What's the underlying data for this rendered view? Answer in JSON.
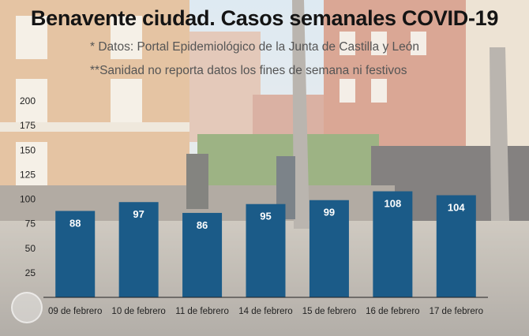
{
  "title": "Benavente ciudad. Casos semanales COVID-19",
  "notes": [
    "* Datos: Portal Epidemiológico de la Junta de Castilla y León",
    "**Sanidad no reporta datos los fines de semana ni festivos"
  ],
  "colors": {
    "bar": "#1b5b88",
    "label": "#ffffff",
    "axis": "#222222"
  },
  "chart_data": {
    "type": "bar",
    "title": "Benavente ciudad. Casos semanales COVID-19",
    "categories": [
      "09 de febrero",
      "10 de febrero",
      "11 de febrero",
      "14 de febrero",
      "15 de febrero",
      "16 de febrero",
      "17 de febrero"
    ],
    "values": [
      88,
      97,
      86,
      95,
      99,
      108,
      104
    ],
    "yticks": [
      25,
      50,
      75,
      100,
      125,
      150,
      175,
      200
    ],
    "ylim": [
      0,
      200
    ],
    "xlabel": "",
    "ylabel": "",
    "grid": false,
    "data_labels": true
  }
}
